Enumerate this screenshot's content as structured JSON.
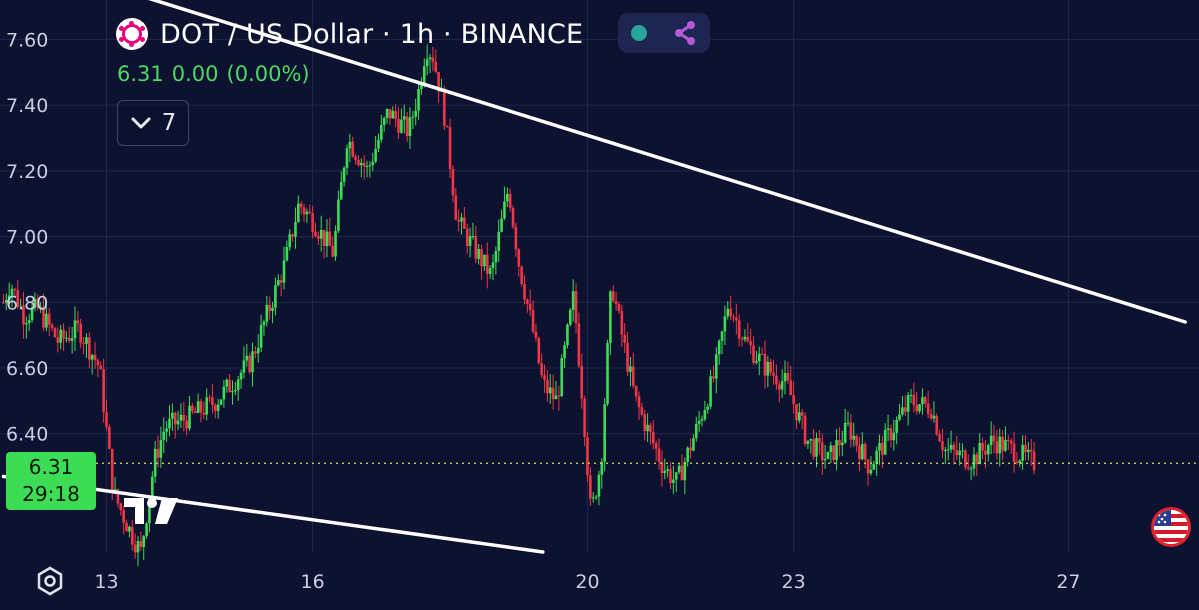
{
  "header": {
    "title": "DOT / US Dollar · 1h · BINANCE",
    "symbol_icon": "polkadot-logo-icon",
    "status_icons": [
      "market-open-dot-icon",
      "share-network-icon"
    ]
  },
  "ohlc": {
    "price": "6.31",
    "change": "0.00",
    "change_pct": "(0.00%)"
  },
  "indicators_toggle": {
    "icon": "chevron-down-icon",
    "count": "7"
  },
  "price_badge": {
    "price": "6.31",
    "countdown": "29:18"
  },
  "colors": {
    "background": "#0c1230",
    "up": "#3ddc55",
    "down": "#f23645",
    "trendline": "#ffffff",
    "current_price_line": "#d4e157"
  },
  "chart_data": {
    "type": "candlestick",
    "title": "DOT / US Dollar · 1h · BINANCE",
    "y_axis": {
      "ticks": [
        "7.60",
        "7.40",
        "7.20",
        "7.00",
        "6.80",
        "6.60",
        "6.40"
      ],
      "range": [
        6.04,
        7.72
      ]
    },
    "x_axis": {
      "ticks": [
        "13",
        "16",
        "20",
        "23",
        "27"
      ],
      "range": [
        11.45,
        28.9
      ]
    },
    "grid": true,
    "current_price": 6.31,
    "price_path": [
      [
        11.5,
        6.8
      ],
      [
        11.6,
        6.86
      ],
      [
        11.8,
        6.76
      ],
      [
        12.0,
        6.78
      ],
      [
        12.3,
        6.68
      ],
      [
        12.6,
        6.72
      ],
      [
        12.9,
        6.6
      ],
      [
        13.1,
        6.22
      ],
      [
        13.35,
        6.1
      ],
      [
        13.5,
        6.04
      ],
      [
        13.7,
        6.32
      ],
      [
        13.85,
        6.42
      ],
      [
        14.2,
        6.45
      ],
      [
        14.6,
        6.5
      ],
      [
        15.1,
        6.62
      ],
      [
        15.4,
        6.8
      ],
      [
        15.6,
        6.92
      ],
      [
        15.8,
        7.1
      ],
      [
        16.0,
        7.05
      ],
      [
        16.3,
        6.95
      ],
      [
        16.5,
        7.3
      ],
      [
        16.8,
        7.2
      ],
      [
        17.1,
        7.38
      ],
      [
        17.4,
        7.32
      ],
      [
        17.55,
        7.45
      ],
      [
        17.65,
        7.58
      ],
      [
        17.75,
        7.55
      ],
      [
        17.9,
        7.4
      ],
      [
        18.1,
        7.05
      ],
      [
        18.3,
        6.98
      ],
      [
        18.6,
        6.88
      ],
      [
        18.85,
        7.15
      ],
      [
        19.0,
        6.92
      ],
      [
        19.2,
        6.72
      ],
      [
        19.35,
        6.55
      ],
      [
        19.55,
        6.5
      ],
      [
        19.8,
        6.82
      ],
      [
        19.95,
        6.45
      ],
      [
        20.05,
        6.15
      ],
      [
        20.2,
        6.32
      ],
      [
        20.35,
        6.86
      ],
      [
        20.5,
        6.7
      ],
      [
        20.7,
        6.5
      ],
      [
        20.9,
        6.4
      ],
      [
        21.1,
        6.3
      ],
      [
        21.3,
        6.25
      ],
      [
        21.6,
        6.42
      ],
      [
        21.85,
        6.58
      ],
      [
        22.05,
        6.8
      ],
      [
        22.3,
        6.68
      ],
      [
        22.6,
        6.6
      ],
      [
        22.9,
        6.55
      ],
      [
        23.2,
        6.38
      ],
      [
        23.5,
        6.32
      ],
      [
        23.8,
        6.42
      ],
      [
        24.1,
        6.3
      ],
      [
        24.4,
        6.4
      ],
      [
        24.7,
        6.5
      ],
      [
        25.0,
        6.48
      ],
      [
        25.2,
        6.35
      ],
      [
        25.6,
        6.32
      ],
      [
        25.9,
        6.38
      ],
      [
        26.2,
        6.35
      ],
      [
        26.5,
        6.31
      ]
    ],
    "trendlines": [
      {
        "x1": 11.7,
        "y1": 7.85,
        "x2": 28.7,
        "y2": 6.74
      },
      {
        "x1": 11.5,
        "y1": 6.27,
        "x2": 19.35,
        "y2": 6.04
      }
    ]
  }
}
